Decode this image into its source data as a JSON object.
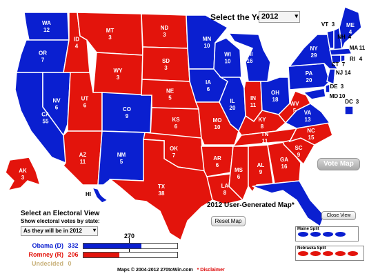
{
  "colors": {
    "dem": "#0a1fd0",
    "rep": "#e3140c",
    "undecided_text": "#c9b27c",
    "split_gray": "#888888"
  },
  "year_selector": {
    "label": "Select the Year",
    "value": "2012"
  },
  "states": [
    {
      "abbr": "WA",
      "ev": "12",
      "party": "dem"
    },
    {
      "abbr": "OR",
      "ev": "7",
      "party": "dem"
    },
    {
      "abbr": "CA",
      "ev": "55",
      "party": "dem"
    },
    {
      "abbr": "NV",
      "ev": "6",
      "party": "dem"
    },
    {
      "abbr": "ID",
      "ev": "4",
      "party": "rep"
    },
    {
      "abbr": "MT",
      "ev": "3",
      "party": "rep"
    },
    {
      "abbr": "WY",
      "ev": "3",
      "party": "rep"
    },
    {
      "abbr": "UT",
      "ev": "6",
      "party": "rep"
    },
    {
      "abbr": "AZ",
      "ev": "11",
      "party": "rep"
    },
    {
      "abbr": "CO",
      "ev": "9",
      "party": "dem"
    },
    {
      "abbr": "NM",
      "ev": "5",
      "party": "dem"
    },
    {
      "abbr": "ND",
      "ev": "3",
      "party": "rep"
    },
    {
      "abbr": "SD",
      "ev": "3",
      "party": "rep"
    },
    {
      "abbr": "NE",
      "ev": "5",
      "party": "rep"
    },
    {
      "abbr": "KS",
      "ev": "6",
      "party": "rep"
    },
    {
      "abbr": "OK",
      "ev": "7",
      "party": "rep"
    },
    {
      "abbr": "TX",
      "ev": "38",
      "party": "rep"
    },
    {
      "abbr": "MN",
      "ev": "10",
      "party": "dem"
    },
    {
      "abbr": "IA",
      "ev": "6",
      "party": "dem"
    },
    {
      "abbr": "MO",
      "ev": "10",
      "party": "rep"
    },
    {
      "abbr": "AR",
      "ev": "6",
      "party": "rep"
    },
    {
      "abbr": "LA",
      "ev": "8",
      "party": "rep"
    },
    {
      "abbr": "WI",
      "ev": "10",
      "party": "dem"
    },
    {
      "abbr": "IL",
      "ev": "20",
      "party": "dem"
    },
    {
      "abbr": "MI",
      "ev": "16",
      "party": "dem"
    },
    {
      "abbr": "IN",
      "ev": "11",
      "party": "rep"
    },
    {
      "abbr": "OH",
      "ev": "18",
      "party": "dem"
    },
    {
      "abbr": "KY",
      "ev": "8",
      "party": "rep"
    },
    {
      "abbr": "TN",
      "ev": "11",
      "party": "rep"
    },
    {
      "abbr": "MS",
      "ev": "6",
      "party": "rep"
    },
    {
      "abbr": "AL",
      "ev": "9",
      "party": "rep"
    },
    {
      "abbr": "GA",
      "ev": "16",
      "party": "rep"
    },
    {
      "abbr": "FL",
      "ev": "29",
      "party": "dem"
    },
    {
      "abbr": "SC",
      "ev": "9",
      "party": "rep"
    },
    {
      "abbr": "NC",
      "ev": "15",
      "party": "rep"
    },
    {
      "abbr": "VA",
      "ev": "13",
      "party": "dem"
    },
    {
      "abbr": "WV",
      "ev": "5",
      "party": "rep"
    },
    {
      "abbr": "PA",
      "ev": "20",
      "party": "dem"
    },
    {
      "abbr": "NY",
      "ev": "29",
      "party": "dem"
    },
    {
      "abbr": "VT",
      "ev": "3",
      "party": "dem"
    },
    {
      "abbr": "NH",
      "ev": "4",
      "party": "dem"
    },
    {
      "abbr": "ME",
      "ev": "4",
      "party": "dem"
    },
    {
      "abbr": "MA",
      "ev": "11",
      "party": "dem"
    },
    {
      "abbr": "RI",
      "ev": "4",
      "party": "dem"
    },
    {
      "abbr": "CT",
      "ev": "7",
      "party": "dem"
    },
    {
      "abbr": "NJ",
      "ev": "14",
      "party": "dem"
    },
    {
      "abbr": "DE",
      "ev": "3",
      "party": "dem"
    },
    {
      "abbr": "MD",
      "ev": "10",
      "party": "dem"
    },
    {
      "abbr": "DC",
      "ev": "3",
      "party": "dem"
    },
    {
      "abbr": "AK",
      "ev": "3",
      "party": "rep"
    },
    {
      "abbr": "HI",
      "ev": "4",
      "party": "dem"
    }
  ],
  "vote_map_button": "Vote Map",
  "map_title": "2012 User-Generated Map*",
  "reset_button": "Reset Map",
  "close_view_button": "Close View",
  "electoral_view": {
    "title": "Select an Electoral View",
    "subtitle": "Show electoral votes by state:",
    "selected": "As they will be in 2012"
  },
  "threshold_label": "270",
  "tally": [
    {
      "name": "Obama (D)",
      "votes": "332",
      "fraction": 0.617
    },
    {
      "name": "Romney (R)",
      "votes": "206",
      "fraction": 0.383
    },
    {
      "name": "Undecided",
      "votes": "0",
      "fraction": 0
    }
  ],
  "maine_split": {
    "title": "Maine Split",
    "ovals": [
      "dem",
      "dem",
      "dem",
      "dem"
    ]
  },
  "nebraska_split": {
    "title": "Nebraska Split",
    "ovals": [
      "rep",
      "rep",
      "rep",
      "rep",
      "rep"
    ]
  },
  "footer": {
    "text": "Maps © 2004-2012 270toWin.com",
    "disclaimer": "* Disclaimer"
  }
}
